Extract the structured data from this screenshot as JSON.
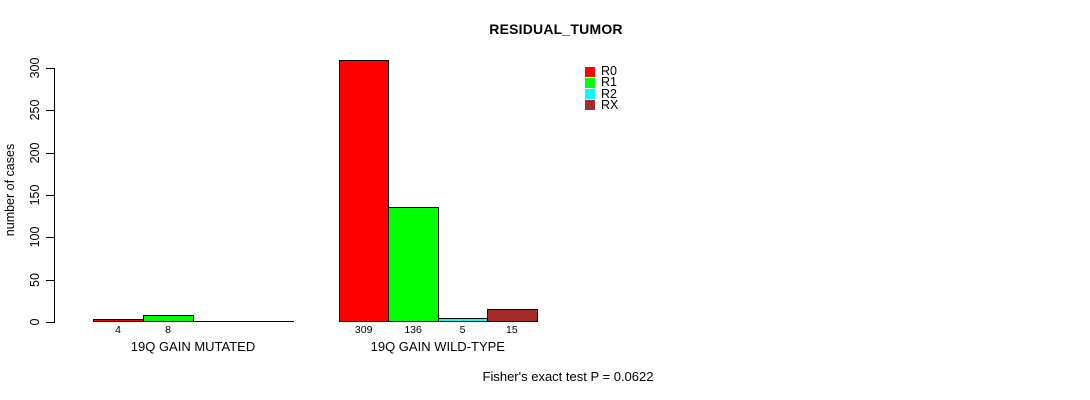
{
  "chart_data": {
    "type": "bar",
    "title": "RESIDUAL_TUMOR",
    "ylabel": "number of cases",
    "ylim": [
      0,
      300
    ],
    "yticks": [
      0,
      50,
      100,
      150,
      200,
      250,
      300
    ],
    "grid": false,
    "legend_position": "top-right",
    "categories": [
      "19Q GAIN MUTATED",
      "19Q GAIN WILD-TYPE"
    ],
    "series": [
      {
        "name": "R0",
        "color": "#ff0000",
        "values": [
          4,
          309
        ]
      },
      {
        "name": "R1",
        "color": "#00ff00",
        "values": [
          8,
          136
        ]
      },
      {
        "name": "R2",
        "color": "#00ffff",
        "values": [
          0,
          5
        ]
      },
      {
        "name": "RX",
        "color": "#a52a2a",
        "values": [
          0,
          15
        ]
      }
    ],
    "bar_value_labels": [
      [
        "4",
        "8",
        "",
        ""
      ],
      [
        "309",
        "136",
        "5",
        "15"
      ]
    ],
    "footnote": "Fisher's exact test P = 0.0622"
  }
}
